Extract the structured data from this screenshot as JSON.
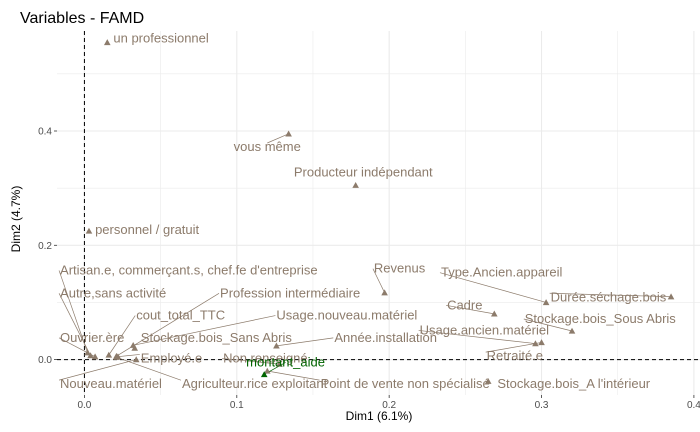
{
  "chart_data": {
    "type": "scatter",
    "title": "Variables - FAMD",
    "xlabel": "Dim1 (6.1%)",
    "ylabel": "Dim2 (4.7%)",
    "xlim": [
      -0.018,
      0.404
    ],
    "ylim": [
      -0.062,
      0.575
    ],
    "x_ticks": [
      0.0,
      0.1,
      0.2,
      0.3,
      0.4
    ],
    "x_tick_labels": [
      "0.0",
      "0.1",
      "0.2",
      "0.3",
      "0.4"
    ],
    "y_ticks": [
      0.0,
      0.2,
      0.4
    ],
    "y_tick_labels": [
      "0.0",
      "0.2",
      "0.4"
    ],
    "grid": true,
    "reference_lines": {
      "x": 0,
      "y": 0,
      "style": "dashed"
    },
    "colors": {
      "qualitative": "#8C7B6B",
      "quantitative": "#006400",
      "grid": "#ebebeb",
      "reference": "#000000"
    },
    "points": [
      {
        "label": "un professionnel",
        "x": 0.015,
        "y": 0.555,
        "group": "qualitative",
        "label_x": 0.019,
        "label_y": 0.555,
        "anchor": "start"
      },
      {
        "label": "vous même",
        "x": 0.134,
        "y": 0.395,
        "group": "qualitative",
        "label_x": 0.12,
        "label_y": 0.365,
        "anchor": "middle"
      },
      {
        "label": "Producteur indépendant",
        "x": 0.178,
        "y": 0.305,
        "group": "qualitative",
        "label_x": 0.183,
        "label_y": 0.32,
        "anchor": "middle"
      },
      {
        "label": "personnel / gratuit",
        "x": 0.003,
        "y": 0.225,
        "group": "qualitative",
        "label_x": 0.007,
        "label_y": 0.22,
        "anchor": "start"
      },
      {
        "label": "Revenus",
        "x": 0.197,
        "y": 0.117,
        "group": "qualitative",
        "label_x": 0.19,
        "label_y": 0.152,
        "anchor": "start"
      },
      {
        "label": "Type.Ancien.appareil",
        "x": 0.303,
        "y": 0.1,
        "group": "qualitative",
        "label_x": 0.234,
        "label_y": 0.145,
        "anchor": "start"
      },
      {
        "label": "Durée.séchage.bois",
        "x": 0.385,
        "y": 0.11,
        "group": "qualitative",
        "label_x": 0.306,
        "label_y": 0.102,
        "anchor": "start"
      },
      {
        "label": "Cadre",
        "x": 0.269,
        "y": 0.08,
        "group": "qualitative",
        "label_x": 0.238,
        "label_y": 0.088,
        "anchor": "start"
      },
      {
        "label": "Stockage.bois_Sous Abris",
        "x": 0.32,
        "y": 0.05,
        "group": "qualitative",
        "label_x": 0.289,
        "label_y": 0.064,
        "anchor": "start"
      },
      {
        "label": "Usage.ancien.matériel",
        "x": 0.296,
        "y": 0.028,
        "group": "qualitative",
        "label_x": 0.22,
        "label_y": 0.044,
        "anchor": "start"
      },
      {
        "label": "Retraité.e",
        "x": 0.3,
        "y": 0.03,
        "group": "qualitative",
        "label_x": 0.264,
        "label_y": -0.001,
        "anchor": "start"
      },
      {
        "label": "Artisan.e, commerçant.s, chef.fe d'entreprise",
        "x": 0.002,
        "y": 0.012,
        "group": "qualitative",
        "label_x": -0.016,
        "label_y": 0.149,
        "anchor": "start"
      },
      {
        "label": "Autre,sans activité",
        "x": 0.004,
        "y": 0.007,
        "group": "qualitative",
        "label_x": -0.016,
        "label_y": 0.109,
        "anchor": "start"
      },
      {
        "label": "Profession intermédiaire",
        "x": 0.021,
        "y": 0.006,
        "group": "qualitative",
        "label_x": 0.089,
        "label_y": 0.109,
        "anchor": "start"
      },
      {
        "label": "cout_total_TTC",
        "x": 0.016,
        "y": 0.008,
        "group": "qualitative",
        "label_x": 0.034,
        "label_y": 0.07,
        "anchor": "start"
      },
      {
        "label": "Usage.nouveau.matériel",
        "x": 0.032,
        "y": 0.025,
        "group": "qualitative",
        "label_x": 0.126,
        "label_y": 0.07,
        "anchor": "start"
      },
      {
        "label": "Ouvrier.ère",
        "x": 0.007,
        "y": 0.005,
        "group": "qualitative",
        "label_x": -0.016,
        "label_y": 0.031,
        "anchor": "start"
      },
      {
        "label": "Stockage.bois_Sans Abris",
        "x": 0.033,
        "y": 0.02,
        "group": "qualitative",
        "label_x": 0.037,
        "label_y": 0.031,
        "anchor": "start"
      },
      {
        "label": "Année.installation",
        "x": 0.126,
        "y": 0.024,
        "group": "qualitative",
        "label_x": 0.164,
        "label_y": 0.031,
        "anchor": "start"
      },
      {
        "label": "Employé.e",
        "x": 0.022,
        "y": 0.005,
        "group": "qualitative",
        "label_x": 0.037,
        "label_y": -0.005,
        "anchor": "start"
      },
      {
        "label": "Nouveau.matériel",
        "x": 0.034,
        "y": 0.0,
        "group": "qualitative",
        "label_x": -0.016,
        "label_y": -0.05,
        "anchor": "start"
      },
      {
        "label": "Agriculteur.rice exploitant",
        "x": 0.021,
        "y": 0.004,
        "group": "qualitative",
        "label_x": 0.064,
        "label_y": -0.05,
        "anchor": "start"
      },
      {
        "label": "Point de vente non spécialisé",
        "x": 0.12,
        "y": -0.02,
        "group": "qualitative",
        "label_x": 0.155,
        "label_y": -0.05,
        "anchor": "start"
      },
      {
        "label": "Stockage.bois_A l'intérieur",
        "x": 0.265,
        "y": -0.038,
        "group": "qualitative",
        "label_x": 0.271,
        "label_y": -0.05,
        "anchor": "start"
      },
      {
        "label": "Non renseigné",
        "x": 0.128,
        "y": -0.008,
        "group": "qualitative",
        "label_x": 0.091,
        "label_y": -0.005,
        "anchor": "start"
      },
      {
        "label": "montant_aide",
        "x": 0.118,
        "y": -0.026,
        "group": "quantitative",
        "label_x": 0.132,
        "label_y": -0.012,
        "anchor": "middle"
      }
    ]
  }
}
